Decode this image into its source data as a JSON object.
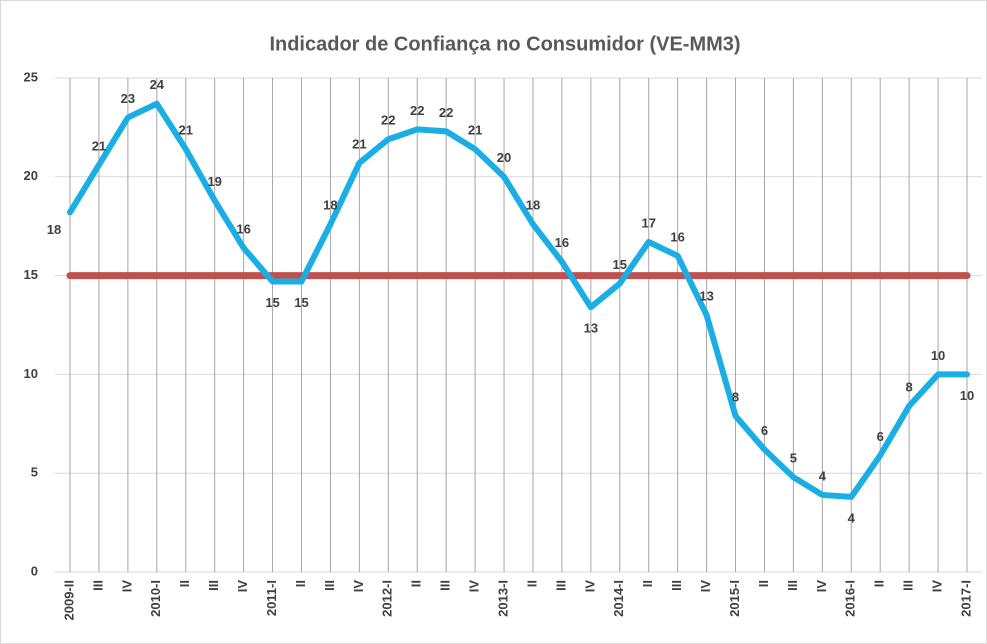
{
  "chart_data": {
    "type": "line",
    "title": "Indicador de Confiança  no Consumidor  (VE-MM3)",
    "categories": [
      "2009-II",
      "III",
      "IV",
      "2010-I",
      "II",
      "III",
      "IV",
      "2011-I",
      "II",
      "III",
      "IV",
      "2012-I",
      "II",
      "III",
      "IV",
      "2013-I",
      "II",
      "III",
      "IV",
      "2014-I",
      "II",
      "III",
      "IV",
      "2015-I",
      "II",
      "III",
      "IV",
      "2016-I",
      "II",
      "III",
      "IV",
      "2017-I"
    ],
    "series": [
      {
        "color": "#1aaee5",
        "values": [
          18.2,
          20.6,
          23.0,
          23.7,
          21.4,
          18.8,
          16.4,
          14.7,
          14.7,
          17.6,
          20.7,
          21.9,
          22.4,
          22.3,
          21.4,
          20.0,
          17.6,
          15.7,
          13.4,
          14.6,
          16.7,
          16.0,
          13.0,
          7.9,
          6.2,
          4.8,
          3.9,
          3.8,
          5.9,
          8.4,
          10.0,
          10.0
        ],
        "value_labels": [
          "18",
          "21",
          "23",
          "24",
          "21",
          "19",
          "16",
          "15",
          "15",
          "18",
          "21",
          "22",
          "22",
          "22",
          "21",
          "20",
          "18",
          "16",
          "13",
          "15",
          "17",
          "16",
          "13",
          "8",
          "6",
          "5",
          "4",
          "4",
          "6",
          "8",
          "10",
          "10"
        ]
      },
      {
        "color": "#c0504d",
        "values": [
          15,
          15,
          15,
          15,
          15,
          15,
          15,
          15,
          15,
          15,
          15,
          15,
          15,
          15,
          15,
          15,
          15,
          15,
          15,
          15,
          15,
          15,
          15,
          15,
          15,
          15,
          15,
          15,
          15,
          15,
          15,
          15
        ]
      }
    ],
    "ylim": [
      0,
      25
    ],
    "yticks": [
      0,
      5,
      10,
      15,
      20,
      25
    ],
    "grid": true
  }
}
